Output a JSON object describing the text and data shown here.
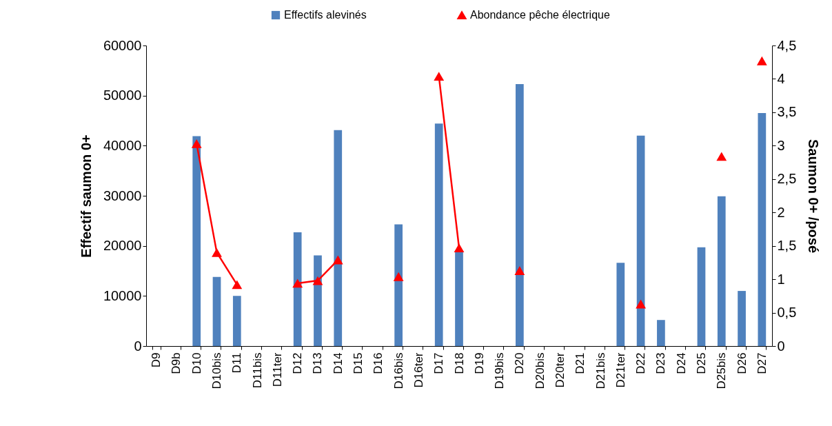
{
  "chart_data": {
    "type": "bar",
    "xlabel": null,
    "ylabel": "Effectif saumon 0+",
    "y2label": "Saumon 0+ /posé",
    "categories": [
      "D9",
      "D9b",
      "D10",
      "D10bis",
      "D11",
      "D11bis",
      "D11ter",
      "D12",
      "D13",
      "D14",
      "D15",
      "D16",
      "D16bis",
      "D16ter",
      "D17",
      "D18",
      "D19",
      "D19bis",
      "D20",
      "D20bis",
      "D20ter",
      "D21",
      "D21bis",
      "D21ter",
      "D22",
      "D23",
      "D24",
      "D25",
      "D25bis",
      "D26",
      "D27"
    ],
    "series": [
      {
        "name": "Effectifs alevinés",
        "color": "#4f81bd",
        "values": [
          null,
          null,
          41900,
          13800,
          10000,
          null,
          null,
          22700,
          18100,
          43100,
          null,
          null,
          24300,
          null,
          44400,
          18700,
          null,
          null,
          52300,
          null,
          null,
          null,
          null,
          16600,
          42000,
          5200,
          null,
          19700,
          29900,
          11000,
          46500
        ]
      },
      {
        "name": "Abondance pêche électrique",
        "type": "line",
        "axis": "y2",
        "color": "#ff0000",
        "marker": "triangle",
        "values": [
          null,
          null,
          3.03,
          1.4,
          0.92,
          null,
          null,
          0.94,
          0.98,
          1.29,
          null,
          null,
          1.04,
          null,
          4.04,
          1.47,
          null,
          null,
          1.13,
          null,
          null,
          null,
          null,
          null,
          0.63,
          null,
          null,
          null,
          2.84,
          null,
          4.27
        ]
      }
    ],
    "ylim": [
      0,
      60000
    ],
    "yticks": [
      0,
      10000,
      20000,
      30000,
      40000,
      50000,
      60000
    ],
    "y2lim": [
      0,
      4.5
    ],
    "y2ticks": [
      0,
      {
        "value": 0.5,
        "label": "0,5"
      },
      1,
      {
        "value": 1.5,
        "label": "1,5"
      },
      2,
      {
        "value": 2.5,
        "label": "2,5"
      },
      3,
      {
        "value": 3.5,
        "label": "3,5"
      },
      4,
      {
        "value": 4.5,
        "label": "4,5"
      }
    ],
    "grid": false,
    "legend": "top"
  }
}
